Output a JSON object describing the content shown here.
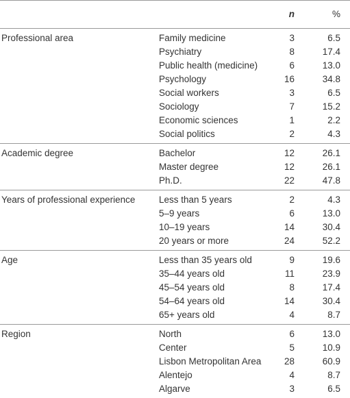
{
  "table": {
    "header": [
      "n",
      "%"
    ],
    "groups": [
      {
        "label": "Professional area",
        "rows": [
          [
            "Family medicine",
            "3",
            "6.5"
          ],
          [
            "Psychiatry",
            "8",
            "17.4"
          ],
          [
            "Public health (medicine)",
            "6",
            "13.0"
          ],
          [
            "Psychology",
            "16",
            "34.8"
          ],
          [
            "Social workers",
            "3",
            "6.5"
          ],
          [
            "Sociology",
            "7",
            "15.2"
          ],
          [
            "Economic sciences",
            "1",
            "2.2"
          ],
          [
            "Social politics",
            "2",
            "4.3"
          ]
        ]
      },
      {
        "label": "Academic degree",
        "rows": [
          [
            "Bachelor",
            "12",
            "26.1"
          ],
          [
            "Master degree",
            "12",
            "26.1"
          ],
          [
            "Ph.D.",
            "22",
            "47.8"
          ]
        ]
      },
      {
        "label": "Years of professional experience",
        "rows": [
          [
            "Less than 5 years",
            "2",
            "4.3"
          ],
          [
            "5–9 years",
            "6",
            "13.0"
          ],
          [
            "10–19 years",
            "14",
            "30.4"
          ],
          [
            "20 years or more",
            "24",
            "52.2"
          ]
        ]
      },
      {
        "label": "Age",
        "rows": [
          [
            "Less than 35 years old",
            "9",
            "19.6"
          ],
          [
            "35–44 years old",
            "11",
            "23.9"
          ],
          [
            "45–54 years old",
            "8",
            "17.4"
          ],
          [
            "54–64 years old",
            "14",
            "30.4"
          ],
          [
            "65+ years old",
            "4",
            "8.7"
          ]
        ]
      },
      {
        "label": "Region",
        "rows": [
          [
            "North",
            "6",
            "13.0"
          ],
          [
            "Center",
            "5",
            "10.9"
          ],
          [
            "Lisbon Metropolitan Area",
            "28",
            "60.9"
          ],
          [
            "Alentejo",
            "4",
            "8.7"
          ],
          [
            "Algarve",
            "3",
            "6.5"
          ]
        ]
      }
    ]
  }
}
